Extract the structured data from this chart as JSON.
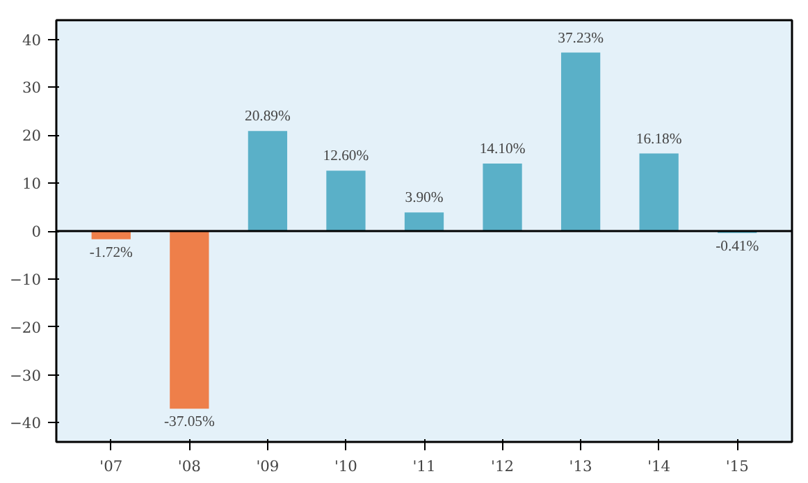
{
  "chart_data": {
    "type": "bar",
    "categories": [
      "'07",
      "'08",
      "'09",
      "'10",
      "'11",
      "'12",
      "'13",
      "'14",
      "'15"
    ],
    "values": [
      -1.72,
      -37.05,
      20.89,
      12.6,
      3.9,
      14.1,
      37.23,
      16.18,
      -0.41
    ],
    "colors": [
      "#ee7f4a",
      "#ee7f4a",
      "#5ab0c8",
      "#5ab0c8",
      "#5ab0c8",
      "#5ab0c8",
      "#5ab0c8",
      "#5ab0c8",
      "#5ab0c8"
    ],
    "value_labels": [
      "-1.72%",
      "-37.05%",
      "20.89%",
      "12.60%",
      "3.90%",
      "14.10%",
      "37.23%",
      "16.18%",
      "-0.41%"
    ],
    "ylim": [
      -44,
      44
    ],
    "yticks": [
      -40,
      -30,
      -20,
      -10,
      0,
      10,
      20,
      30,
      40
    ],
    "ref_lines": [
      {
        "axis": "y",
        "value": 0,
        "color": "#000000"
      }
    ],
    "grid": false
  }
}
